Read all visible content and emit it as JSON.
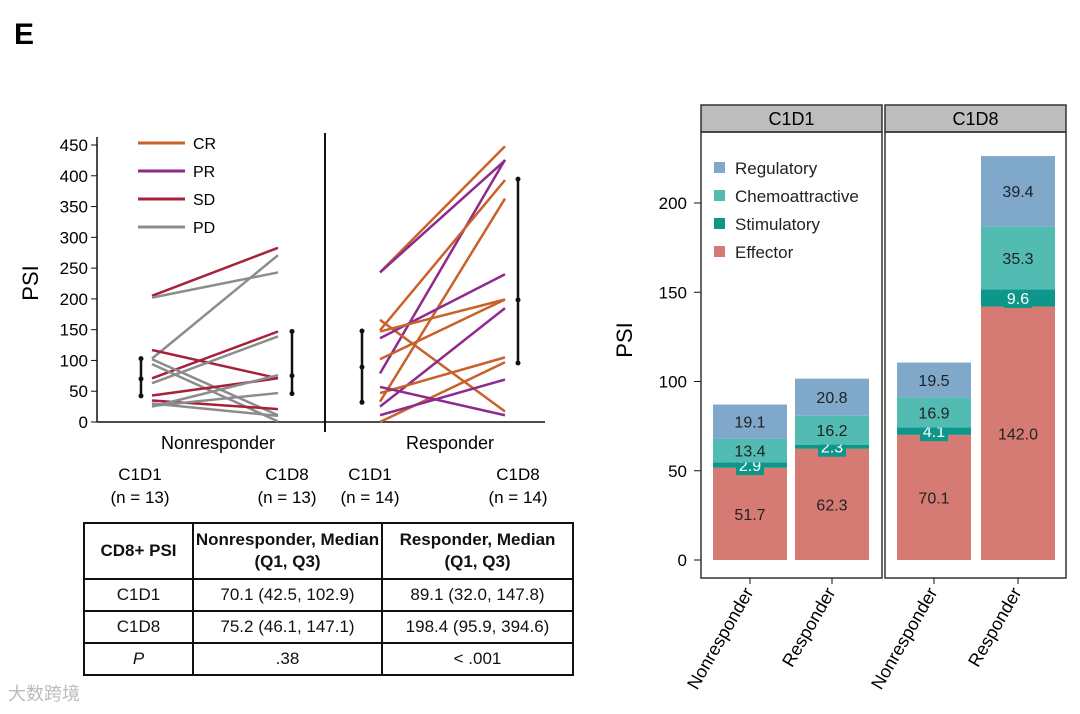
{
  "panel_label": "E",
  "chart_data": [
    {
      "type": "line",
      "title": "",
      "ylabel": "PSI",
      "ylim": [
        0,
        450
      ],
      "yticks": [
        0,
        50,
        100,
        150,
        200,
        250,
        300,
        350,
        400,
        450
      ],
      "groups": [
        "Nonresponder",
        "Responder"
      ],
      "timepoints": [
        [
          "C1D1",
          "(n = 13)",
          "C1D8",
          "(n = 13)"
        ],
        [
          "C1D1",
          "(n = 14)",
          "C1D8",
          "(n = 14)"
        ]
      ],
      "legend": [
        {
          "name": "CR",
          "color": "#c8622a"
        },
        {
          "name": "PR",
          "color": "#8e2a8e"
        },
        {
          "name": "SD",
          "color": "#a8213a"
        },
        {
          "name": "PD",
          "color": "#8c8c8c"
        }
      ],
      "legend_position": "top-left",
      "series": {
        "Nonresponder": [
          [
            "SD",
            205,
            283
          ],
          [
            "PD",
            202,
            243
          ],
          [
            "PD",
            103,
            271
          ],
          [
            "SD",
            117,
            71
          ],
          [
            "SD",
            71,
            147
          ],
          [
            "PD",
            63,
            139
          ],
          [
            "PD",
            102,
            11
          ],
          [
            "PD",
            94,
            1
          ],
          [
            "SD",
            43,
            71
          ],
          [
            "SD",
            35,
            21
          ],
          [
            "PD",
            26,
            47
          ],
          [
            "PD",
            25,
            76
          ],
          [
            "PD",
            30,
            10
          ]
        ],
        "Responder": [
          [
            "CR",
            243,
            448
          ],
          [
            "PR",
            243,
            425
          ],
          [
            "PR",
            79,
            426
          ],
          [
            "CR",
            149,
            393
          ],
          [
            "CR",
            166,
            17
          ],
          [
            "CR",
            33,
            363
          ],
          [
            "PR",
            136,
            240
          ],
          [
            "CR",
            147,
            199
          ],
          [
            "CR",
            102,
            199
          ],
          [
            "PR",
            25,
            185
          ],
          [
            "CR",
            47,
            105
          ],
          [
            "CR",
            0,
            97
          ],
          [
            "PR",
            57,
            11
          ],
          [
            "PR",
            11,
            69
          ]
        ]
      },
      "summary": [
        {
          "group": "Nonresponder",
          "time": "C1D1",
          "median": 70.1,
          "q1": 42.5,
          "q3": 102.9
        },
        {
          "group": "Nonresponder",
          "time": "C1D8",
          "median": 75.2,
          "q1": 46.1,
          "q3": 147.1
        },
        {
          "group": "Responder",
          "time": "C1D1",
          "median": 89.1,
          "q1": 32.0,
          "q3": 147.8
        },
        {
          "group": "Responder",
          "time": "C1D8",
          "median": 198.4,
          "q1": 95.9,
          "q3": 394.6
        }
      ]
    },
    {
      "type": "bar",
      "stacked": true,
      "ylabel": "PSI",
      "ylim": [
        0,
        230
      ],
      "yticks": [
        0,
        50,
        100,
        150,
        200
      ],
      "facets": [
        "C1D1",
        "C1D8"
      ],
      "categories": [
        "Nonresponder",
        "Responder"
      ],
      "legend_position": "top-left",
      "series": [
        {
          "name": "Effector",
          "color": "#d67b74",
          "values": [
            [
              51.7,
              62.3
            ],
            [
              70.1,
              142.0
            ]
          ],
          "labels": [
            [
              "51.7",
              "62.3"
            ],
            [
              "70.1",
              "142.0"
            ]
          ]
        },
        {
          "name": "Stimulatory",
          "color": "#0e968a",
          "values": [
            [
              2.9,
              2.3
            ],
            [
              4.1,
              9.6
            ]
          ],
          "labels": [
            [
              "2.9",
              "2.3"
            ],
            [
              "4.1",
              "9.6"
            ]
          ]
        },
        {
          "name": "Chemoattractive",
          "color": "#52bcb2",
          "values": [
            [
              13.4,
              16.2
            ],
            [
              16.9,
              35.3
            ]
          ],
          "labels": [
            [
              "13.4",
              "16.2"
            ],
            [
              "16.9",
              "35.3"
            ]
          ]
        },
        {
          "name": "Regulatory",
          "color": "#7fa8cb",
          "values": [
            [
              19.1,
              20.8
            ],
            [
              19.5,
              39.4
            ]
          ],
          "labels": [
            [
              "19.1",
              "20.8"
            ],
            [
              "19.5",
              "39.4"
            ]
          ]
        }
      ]
    }
  ],
  "table": {
    "headers": [
      "CD8+ PSI",
      "Nonresponder, Median (Q1, Q3)",
      "Responder, Median (Q1, Q3)"
    ],
    "rows": [
      [
        "C1D1",
        "70.1 (42.5, 102.9)",
        "89.1 (32.0, 147.8)"
      ],
      [
        "C1D8",
        "75.2 (46.1, 147.1)",
        "198.4 (95.9, 394.6)"
      ],
      [
        "P",
        ".38",
        "< .001"
      ]
    ]
  },
  "watermark": "大数跨境"
}
